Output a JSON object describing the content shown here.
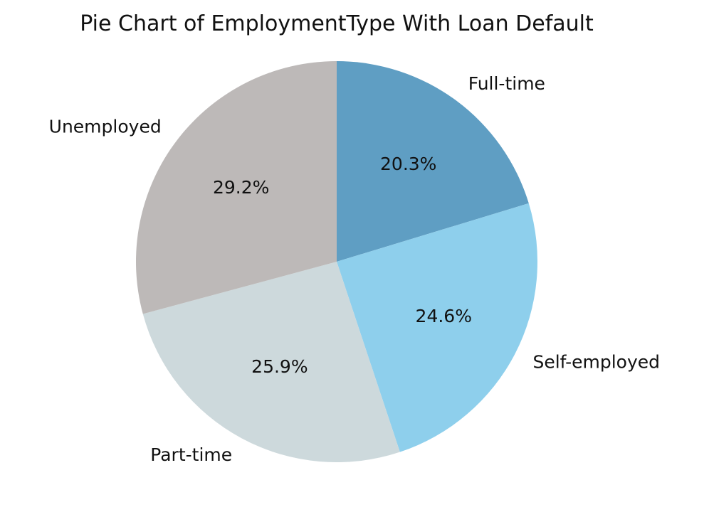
{
  "chart_data": {
    "type": "pie",
    "title": "Pie Chart of EmploymentType With Loan Default",
    "labels": [
      "Full-time",
      "Self-employed",
      "Part-time",
      "Unemployed"
    ],
    "values": [
      20.3,
      24.6,
      25.9,
      29.2
    ],
    "percent_labels": [
      "20.3%",
      "24.6%",
      "25.9%",
      "29.2%"
    ],
    "colors": [
      "#5f9ec3",
      "#8ecfec",
      "#cdd9dc",
      "#bdb9b8"
    ],
    "start_angle_degrees": 90,
    "direction": "clockwise"
  }
}
